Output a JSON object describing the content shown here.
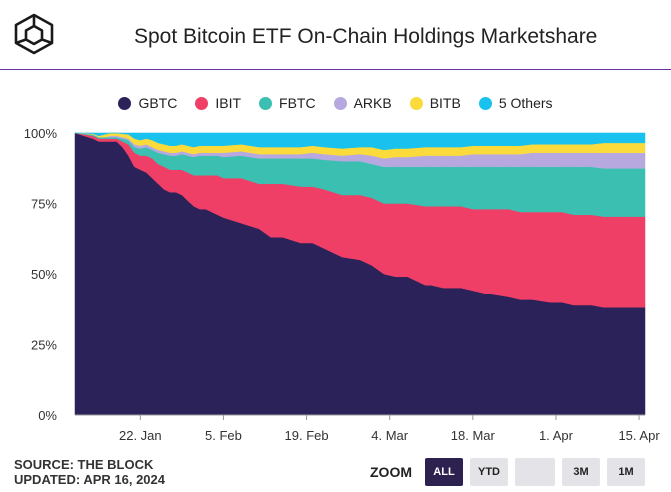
{
  "header": {
    "title": "Spot Bitcoin ETF On-Chain Holdings Marketshare"
  },
  "footer": {
    "source": "SOURCE: THE BLOCK",
    "updated": "UPDATED: APR 16, 2024"
  },
  "zoom": {
    "label": "ZOOM",
    "buttons": [
      "ALL",
      "YTD",
      "",
      "3M",
      "1M"
    ],
    "active": "ALL"
  },
  "colors": {
    "GBTC": "#2b2259",
    "IBIT": "#ef3f66",
    "FBTC": "#3bbfb1",
    "ARKB": "#b7a9e0",
    "BITB": "#fbdb3c",
    "5 Others": "#18c1ee",
    "title_rule": "#6b2fa0"
  },
  "chart_data": {
    "type": "area",
    "stacking": "percent",
    "title": "Spot Bitcoin ETF On-Chain Holdings Marketshare",
    "legend_position": "top-center",
    "x_start": "2024-01-11",
    "x_end": "2024-04-16",
    "x_tick_labels": [
      {
        "label": "22. Jan",
        "day": 11
      },
      {
        "label": "5. Feb",
        "day": 25
      },
      {
        "label": "19. Feb",
        "day": 39
      },
      {
        "label": "4. Mar",
        "day": 53
      },
      {
        "label": "18. Mar",
        "day": 67
      },
      {
        "label": "1. Apr",
        "day": 81
      },
      {
        "label": "15. Apr",
        "day": 95
      }
    ],
    "y_ticks": [
      "0%",
      "25%",
      "50%",
      "75%",
      "100%"
    ],
    "ylim": [
      0,
      100
    ],
    "x_days": [
      0,
      3,
      4,
      5,
      6,
      7,
      8,
      9,
      10,
      11,
      12,
      13,
      14,
      15,
      16,
      17,
      18,
      19,
      20,
      21,
      22,
      24,
      25,
      28,
      31,
      33,
      35,
      38,
      40,
      42,
      45,
      48,
      50,
      52,
      54,
      56,
      59,
      60,
      62,
      65,
      67,
      69,
      70,
      73,
      75,
      77,
      80,
      82,
      84,
      87,
      89,
      91,
      94,
      96
    ],
    "series": [
      {
        "name": "GBTC",
        "values": [
          100,
          98,
          97,
          97,
          97,
          97,
          95,
          92,
          88,
          87,
          86,
          84,
          82,
          80,
          79,
          79,
          78,
          76,
          74,
          73,
          73,
          71,
          70,
          68,
          66,
          63,
          63,
          61,
          61,
          59,
          56,
          55,
          53,
          50,
          49,
          49,
          46,
          46,
          45,
          45,
          44,
          43,
          43,
          42,
          41,
          41,
          40,
          40,
          39,
          39,
          38,
          38,
          38,
          38
        ]
      },
      {
        "name": "IBIT",
        "values": [
          0,
          1,
          1,
          1,
          1,
          1,
          2,
          4,
          5,
          5,
          6,
          7,
          7,
          8,
          8,
          8,
          9,
          10,
          11,
          12,
          12,
          14,
          14,
          16,
          16,
          19,
          19,
          20,
          20,
          21,
          22,
          23,
          24,
          25,
          26,
          26,
          28,
          28,
          29,
          29,
          29,
          30,
          30,
          31,
          31,
          31,
          32,
          32,
          32,
          32,
          32,
          32,
          32,
          32
        ]
      },
      {
        "name": "FBTC",
        "values": [
          0,
          0.5,
          0.5,
          0.5,
          0.5,
          0.5,
          1,
          1.5,
          2,
          2.5,
          3,
          3,
          4,
          4.5,
          5,
          5,
          5.5,
          6,
          6.5,
          7,
          7,
          7,
          7.5,
          8,
          9,
          9,
          9,
          10,
          10,
          10.5,
          12,
          12,
          12,
          13,
          13,
          13,
          14,
          14,
          14,
          14,
          15,
          15,
          15,
          15,
          16,
          16,
          16,
          16,
          17,
          17,
          17,
          17,
          17,
          17
        ]
      },
      {
        "name": "ARKB",
        "values": [
          0,
          0,
          0,
          0,
          0.5,
          0.5,
          0.5,
          0.5,
          1,
          1,
          1,
          1,
          1,
          1,
          1,
          1,
          1,
          1,
          1,
          1,
          1,
          1,
          1.5,
          1.5,
          1.5,
          1.5,
          1.5,
          1.5,
          2,
          2,
          2,
          2.5,
          3,
          3,
          3.5,
          3.5,
          4,
          4,
          4,
          4,
          4.5,
          4.5,
          4.5,
          4.5,
          4.5,
          5,
          5,
          5,
          5,
          5,
          5.5,
          5.5,
          5.5,
          5.5
        ]
      },
      {
        "name": "BITB",
        "values": [
          0,
          0.3,
          0.5,
          1,
          1,
          1,
          1.2,
          1.5,
          2,
          2,
          2,
          2.5,
          2.5,
          2.5,
          2.5,
          2.5,
          2.5,
          2.5,
          2.5,
          2.5,
          2.5,
          2.5,
          2.5,
          2.5,
          2.5,
          2.5,
          2.5,
          2.5,
          2.5,
          2.5,
          2.5,
          2.5,
          3,
          3,
          3,
          3,
          3,
          3,
          3,
          3,
          3,
          3,
          3,
          3,
          3,
          3,
          3,
          3,
          3,
          3,
          3.5,
          3.5,
          3.5,
          3.5
        ]
      },
      {
        "name": "5 Others",
        "values": [
          0,
          0.2,
          1,
          0.5,
          0,
          0,
          0.3,
          0.5,
          2,
          2.5,
          2,
          2.5,
          3.5,
          4,
          4.5,
          4.5,
          4,
          4.5,
          5,
          4.5,
          4.5,
          4.5,
          4.5,
          4,
          5,
          5,
          5,
          5,
          4.5,
          5,
          5.5,
          5,
          5,
          6,
          5.5,
          5.5,
          5,
          5,
          5,
          5,
          4.5,
          4.5,
          4.5,
          4.5,
          4.5,
          4,
          4,
          4,
          4,
          4,
          3.5,
          3.5,
          3.5,
          3.5
        ]
      }
    ]
  }
}
